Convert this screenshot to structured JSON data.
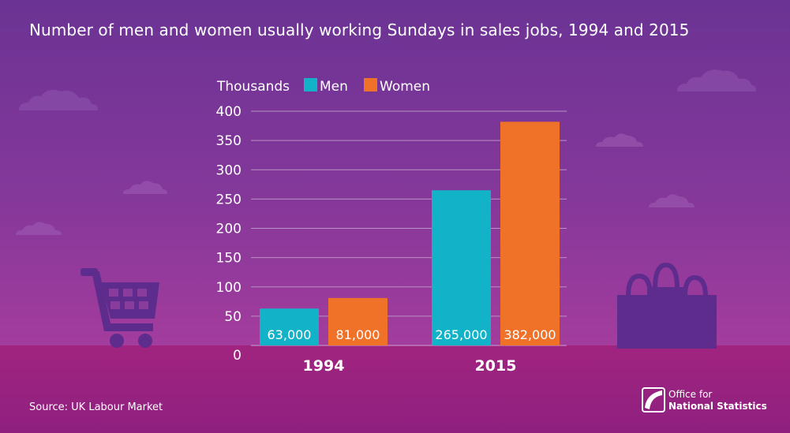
{
  "title": "Number of men and women usually working Sundays in sales jobs, 1994 and 2015",
  "source": "Source: UK Labour Market",
  "logo": {
    "line1": "Office for",
    "line2": "National Statistics"
  },
  "icons": [
    "cloud-icon",
    "shopping-cart-icon",
    "shopping-bags-icon",
    "ons-logo-icon"
  ],
  "colors": {
    "men": "#12b3c8",
    "women": "#f07128",
    "background_top": "#6b3394",
    "floor": "#a0247f",
    "grid": "#b892c2"
  },
  "chart_data": {
    "type": "bar",
    "categories": [
      "1994",
      "2015"
    ],
    "series": [
      {
        "name": "Men",
        "values": [
          63,
          265
        ],
        "labels": [
          "63,000",
          "265,000"
        ]
      },
      {
        "name": "Women",
        "values": [
          81,
          382
        ],
        "labels": [
          "81,000",
          "382,000"
        ]
      }
    ],
    "ylabel": "Thousands",
    "ylim": [
      0,
      400
    ],
    "yticks": [
      0,
      50,
      100,
      150,
      200,
      250,
      300,
      350,
      400
    ],
    "grid": true,
    "legend": "top"
  }
}
